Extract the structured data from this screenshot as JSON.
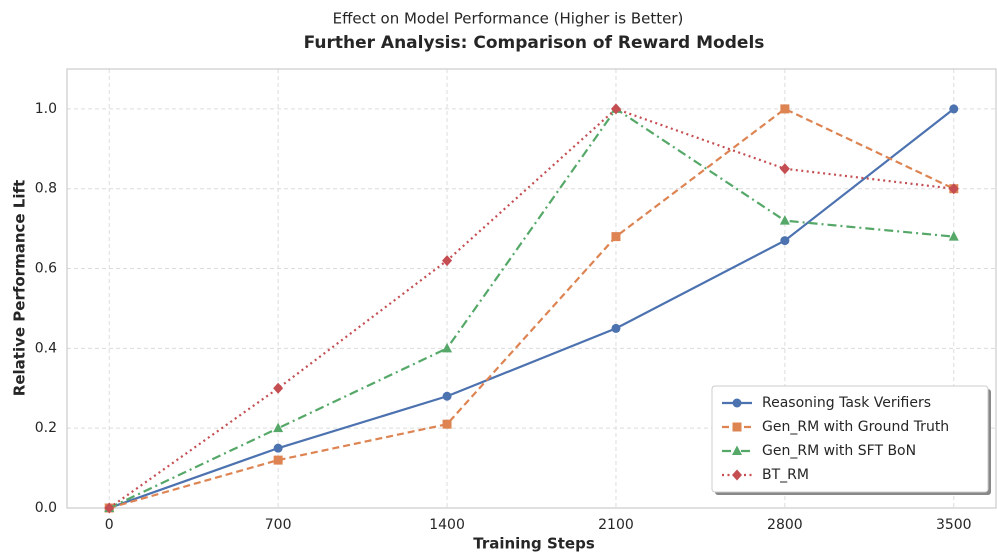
{
  "chart_data": {
    "type": "line",
    "title": "Further Analysis: Comparison of Reward Models",
    "subtitle": "Effect on Model Performance (Higher is Better)",
    "x_label": "Training Steps",
    "y_label": "Relative Performance Lift",
    "x": [
      0,
      700,
      1400,
      2100,
      2800,
      3500
    ],
    "series": [
      {
        "name": "Reasoning Task Verifiers",
        "color": "#4c72b0",
        "marker": "circle",
        "linestyle": "solid",
        "values": [
          0,
          0.15,
          0.28,
          0.45,
          0.67,
          1.0
        ]
      },
      {
        "name": "Gen_RM with Ground Truth",
        "color": "#dd8452",
        "marker": "square",
        "linestyle": "dashed",
        "values": [
          0,
          0.12,
          0.21,
          0.68,
          1.0,
          0.8
        ]
      },
      {
        "name": "Gen_RM with SFT BoN",
        "color": "#55a868",
        "marker": "triangle",
        "linestyle": "dashdot",
        "values": [
          0,
          0.2,
          0.4,
          1.0,
          0.72,
          0.68
        ]
      },
      {
        "name": "BT_RM",
        "color": "#c44e52",
        "marker": "diamond",
        "linestyle": "dotted",
        "values": [
          0,
          0.3,
          0.62,
          1.0,
          0.85,
          0.8
        ]
      }
    ],
    "xlim": [
      -175,
      3675
    ],
    "xticks": [
      0,
      700,
      1400,
      2100,
      2800,
      3500
    ],
    "ylim": [
      0,
      1.1
    ],
    "yticks": [
      {
        "value": 0,
        "label": "0.0"
      },
      0.2,
      0.4,
      0.6,
      0.8,
      {
        "value": 1.0,
        "label": "1.0"
      }
    ],
    "grid": true,
    "legend": "lower right"
  }
}
